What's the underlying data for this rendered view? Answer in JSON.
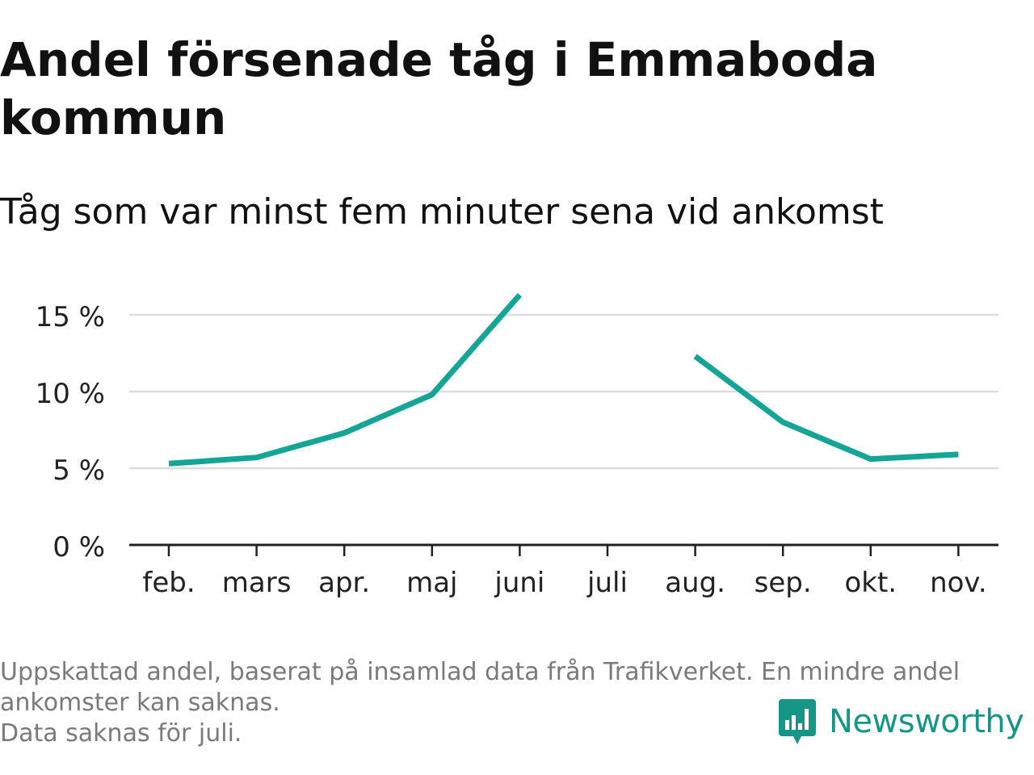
{
  "title": "Andel försenade tåg i Emmaboda kommun",
  "subtitle": "Tåg som var minst fem minuter sena vid ankomst",
  "footnote": {
    "line1": "Uppskattad andel, baserat på insamlad data från Trafikverket. En mindre andel",
    "line2": "ankomster kan saknas.",
    "line3": "Data saknas för juli."
  },
  "brand": {
    "name": "Newsworthy",
    "logo_icon": "newsworthy-bar-chart-icon",
    "color": "#159686"
  },
  "chart_data": {
    "type": "line",
    "categories": [
      "feb.",
      "mars",
      "apr.",
      "maj",
      "juni",
      "juli",
      "aug.",
      "sep.",
      "okt.",
      "nov."
    ],
    "series": [
      {
        "values": [
          5.3,
          5.7,
          7.3,
          9.8,
          16.3,
          null,
          12.3,
          8.0,
          5.6,
          5.9
        ]
      }
    ],
    "ylim": [
      0,
      17
    ],
    "yticks": [
      0,
      5,
      10,
      15
    ],
    "ytick_labels": [
      "0 %",
      "5 %",
      "10 %",
      "15 %"
    ],
    "grid": true,
    "line_color": "#14a596",
    "grid_color": "#dddddd",
    "axis_color": "#222222"
  }
}
